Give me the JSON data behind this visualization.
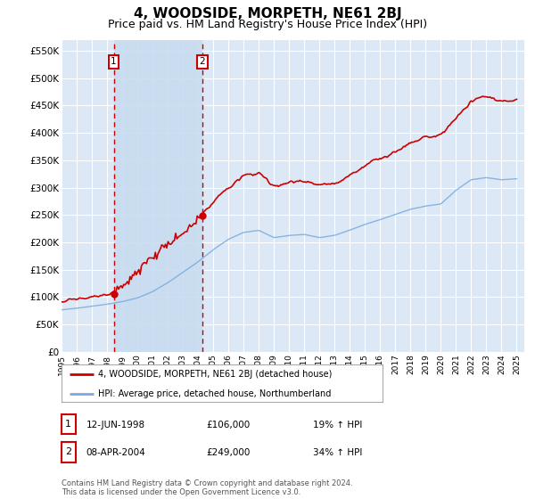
{
  "title": "4, WOODSIDE, MORPETH, NE61 2BJ",
  "subtitle": "Price paid vs. HM Land Registry's House Price Index (HPI)",
  "title_fontsize": 11,
  "subtitle_fontsize": 9,
  "background_color": "#ffffff",
  "plot_bg_color": "#dce8f5",
  "grid_color": "#ffffff",
  "ylim": [
    0,
    570000
  ],
  "yticks": [
    0,
    50000,
    100000,
    150000,
    200000,
    250000,
    300000,
    350000,
    400000,
    450000,
    500000,
    550000
  ],
  "ytick_labels": [
    "£0",
    "£50K",
    "£100K",
    "£150K",
    "£200K",
    "£250K",
    "£300K",
    "£350K",
    "£400K",
    "£450K",
    "£500K",
    "£550K"
  ],
  "xlim_start": 1995.0,
  "xlim_end": 2025.5,
  "sale1_date": 1998.44,
  "sale1_price": 106000,
  "sale1_label": "12-JUN-1998",
  "sale1_amount": "£106,000",
  "sale1_hpi": "19% ↑ HPI",
  "sale2_date": 2004.27,
  "sale2_price": 249000,
  "sale2_label": "08-APR-2004",
  "sale2_amount": "£249,000",
  "sale2_hpi": "34% ↑ HPI",
  "legend_line1": "4, WOODSIDE, MORPETH, NE61 2BJ (detached house)",
  "legend_line2": "HPI: Average price, detached house, Northumberland",
  "footnote": "Contains HM Land Registry data © Crown copyright and database right 2024.\nThis data is licensed under the Open Government Licence v3.0.",
  "property_line_color": "#cc0000",
  "hpi_line_color": "#7aaadd",
  "sale_marker_color": "#cc0000",
  "vline_color": "#cc0000",
  "marker_box_color": "#cc0000",
  "span_color": "#c8dcf0",
  "hpi_base_values": [
    80000,
    83000,
    87000,
    91000,
    96000,
    103000,
    115000,
    132000,
    152000,
    172000,
    195000,
    215000,
    228000,
    232000,
    218000,
    222000,
    224000,
    218000,
    222000,
    232000,
    243000,
    252000,
    262000,
    272000,
    278000,
    282000,
    308000,
    328000,
    332000,
    328000,
    330000
  ],
  "prop_scale2_extra": 1.52
}
